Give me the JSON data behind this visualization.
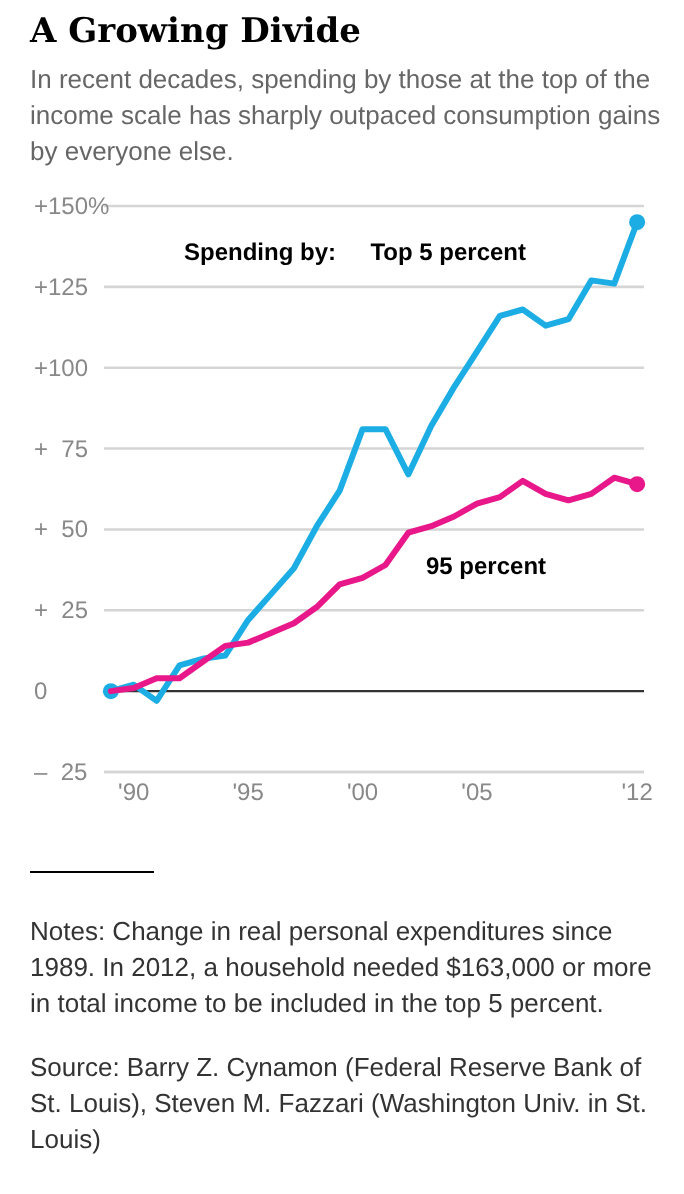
{
  "chart_data": {
    "type": "line",
    "title": "A Growing Divide",
    "subtitle": "In recent decades, spending by those at the top of the income scale has sharply outpaced consumption gains by everyone else.",
    "legend_title": "Spending by:",
    "x": [
      1989,
      1990,
      1991,
      1992,
      1993,
      1994,
      1995,
      1996,
      1997,
      1998,
      1999,
      2000,
      2001,
      2002,
      2003,
      2004,
      2005,
      2006,
      2007,
      2008,
      2009,
      2010,
      2011,
      2012
    ],
    "series": [
      {
        "name": "Top 5 percent",
        "color": "#1cade4",
        "values": [
          0,
          2,
          -3,
          8,
          10,
          11,
          22,
          30,
          38,
          51,
          62,
          81,
          81,
          67,
          82,
          94,
          105,
          116,
          118,
          113,
          115,
          127,
          126,
          145
        ]
      },
      {
        "name": "95 percent",
        "color": "#e8178a",
        "values": [
          0,
          1,
          4,
          4,
          9,
          14,
          15,
          18,
          21,
          26,
          33,
          35,
          39,
          49,
          51,
          54,
          58,
          60,
          65,
          61,
          59,
          61,
          66,
          64
        ]
      }
    ],
    "xlim": [
      1988.7,
      2012.3
    ],
    "xticks": [
      {
        "value": 1990,
        "label": "'90"
      },
      {
        "value": 1995,
        "label": "'95"
      },
      {
        "value": 2000,
        "label": "'00"
      },
      {
        "value": 2005,
        "label": "'05"
      },
      {
        "value": 2012,
        "label": "'12"
      }
    ],
    "ylim": [
      -25,
      150
    ],
    "yticks": [
      {
        "value": 150,
        "label": "+150%"
      },
      {
        "value": 125,
        "label": "+125"
      },
      {
        "value": 100,
        "label": "+100"
      },
      {
        "value": 75,
        "label": "+  75"
      },
      {
        "value": 50,
        "label": "+  50"
      },
      {
        "value": 25,
        "label": "+  25"
      },
      0,
      {
        "value": -25,
        "label": "–  25"
      }
    ],
    "grid": "y",
    "annotations": [
      "Notes: Change in real personal expenditures since 1989. In 2012, a household needed $163,000 or more in total income to be included in the top 5 percent.",
      "Source: Barry Z. Cynamon (Federal Reserve Bank of St. Louis), Steven M. Fazzari (Washington Univ. in St. Louis)"
    ]
  }
}
